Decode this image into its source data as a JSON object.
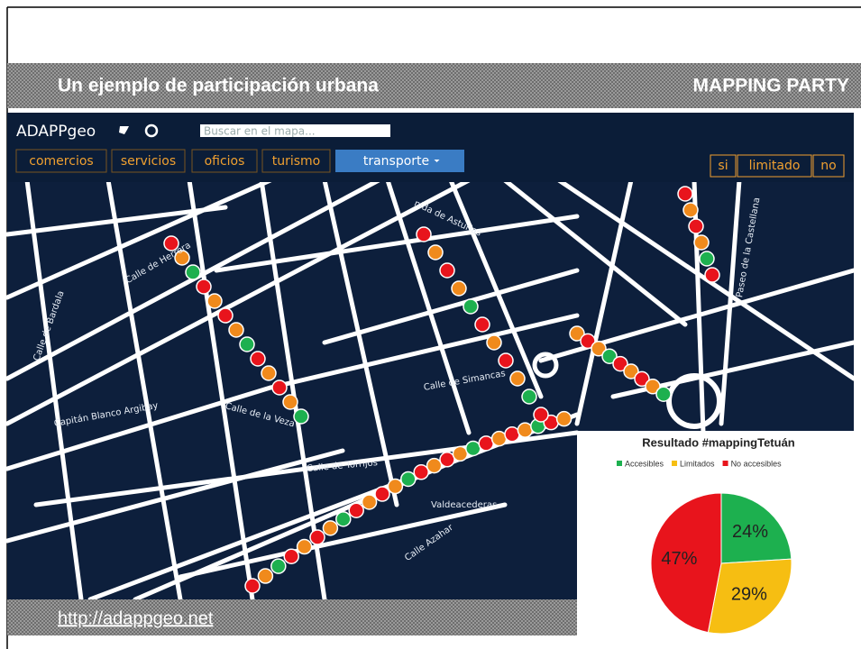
{
  "header": {
    "title": "Un ejemplo de participación urbana",
    "tag": "MAPPING PARTY"
  },
  "app": {
    "brand": "ADAPPgeo",
    "search_placeholder": "Buscar en el mapa...",
    "categories": [
      "comercios",
      "servicios",
      "oficios",
      "turismo",
      "transporte"
    ],
    "filters": [
      "si",
      "limitado",
      "no"
    ]
  },
  "map": {
    "street_labels": [
      "Calle de Herrera",
      "Calle de la Veza",
      "Capitán Blanco Argibay",
      "Calle de Torrijos",
      "Calle de Simancas",
      "Paseo de la Castellana",
      "Valdeacederas",
      "Calle Azahar",
      "nida de Asturias",
      "Calle de Bardala"
    ]
  },
  "footer": {
    "link": "http://adappgeo.net"
  },
  "chart_data": {
    "type": "pie",
    "title": "Resultado #mappingTetuán",
    "categories": [
      "Accesibles",
      "Limitados",
      "No accesibles"
    ],
    "values": [
      24,
      29,
      47
    ],
    "value_labels": [
      "24%",
      "29%",
      "47%"
    ],
    "colors": [
      "#1db04f",
      "#f6be12",
      "#e8141c"
    ]
  }
}
